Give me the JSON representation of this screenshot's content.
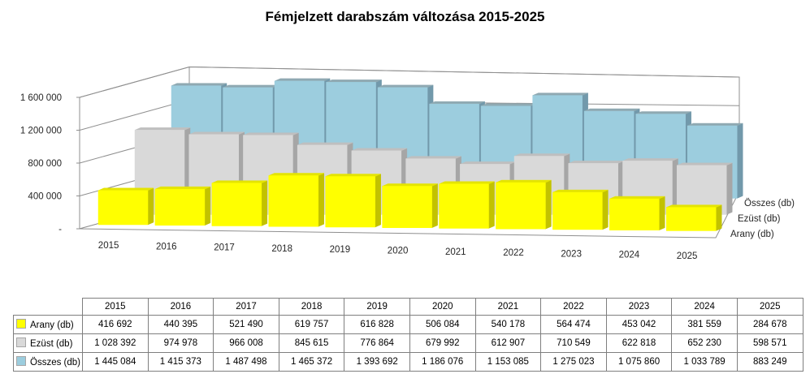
{
  "chart_data": {
    "type": "bar",
    "style": "3d-column",
    "title": "Fémjelzett darabszám változása 2015-2025",
    "categories": [
      "2015",
      "2016",
      "2017",
      "2018",
      "2019",
      "2020",
      "2021",
      "2022",
      "2023",
      "2024",
      "2025"
    ],
    "series": [
      {
        "name": "Arany (db)",
        "color": "#FFFF00",
        "color_top": "#E4E400",
        "color_side": "#C2C200",
        "values": [
          416692,
          440395,
          521490,
          619757,
          616828,
          506084,
          540178,
          564474,
          453042,
          381559,
          284678
        ]
      },
      {
        "name": "Ezüst (db)",
        "color": "#D9D9D9",
        "color_top": "#BFBFBF",
        "color_side": "#A6A6A6",
        "values": [
          1028392,
          974978,
          966008,
          845615,
          776864,
          679992,
          612907,
          710549,
          622818,
          652230,
          598571
        ]
      },
      {
        "name": "Összes (db)",
        "color": "#9CCDDE",
        "color_top": "#8FA9B2",
        "color_side": "#7299AB",
        "values": [
          1445084,
          1415373,
          1487498,
          1465372,
          1393692,
          1186076,
          1153085,
          1275023,
          1075860,
          1033789,
          883249
        ]
      }
    ],
    "y_axis": {
      "min": 0,
      "max": 1600000,
      "tick_step": 400000,
      "tick_labels": [
        "-",
        "400 000",
        "800 000",
        "1 200 000",
        "1 600 000"
      ]
    },
    "depth_axis_labels_top_to_bottom": [
      "Összes (db)",
      "Ezüst (db)",
      "Arany (db)"
    ],
    "gridlines": true,
    "legend_position": "depth-axis-right",
    "line_color": "#8F8F8F"
  },
  "table": {
    "corner_label": "",
    "years": [
      "2015",
      "2016",
      "2017",
      "2018",
      "2019",
      "2020",
      "2021",
      "2022",
      "2023",
      "2024",
      "2025"
    ],
    "rows": [
      {
        "label": "Arany (db)",
        "swatch_color": "#FFFF00",
        "values": [
          "416 692",
          "440 395",
          "521 490",
          "619 757",
          "616 828",
          "506 084",
          "540 178",
          "564 474",
          "453 042",
          "381 559",
          "284 678"
        ]
      },
      {
        "label": "Ezüst (db)",
        "swatch_color": "#D9D9D9",
        "values": [
          "1 028 392",
          "974 978",
          "966 008",
          "845 615",
          "776 864",
          "679 992",
          "612 907",
          "710 549",
          "622 818",
          "652 230",
          "598 571"
        ]
      },
      {
        "label": "Összes (db)",
        "swatch_color": "#9CCDDE",
        "values": [
          "1 445 084",
          "1 415 373",
          "1 487 498",
          "1 465 372",
          "1 393 692",
          "1 186 076",
          "1 153 085",
          "1 275 023",
          "1 075 860",
          "1 033 789",
          "883 249"
        ]
      }
    ]
  }
}
